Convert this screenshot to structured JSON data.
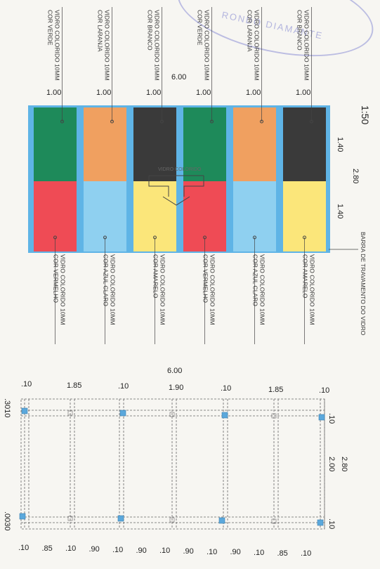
{
  "scale": "1:50",
  "stamp_text": "RONDO DIAMANTE",
  "elevation": {
    "overall_width": "6.00",
    "overall_height": "2.80",
    "panel_height_upper": "1.40",
    "panel_height_lower": "1.40",
    "panel_width_labels": [
      "1.00",
      "1.00",
      "1.00",
      "1.00",
      "1.00",
      "1.00"
    ],
    "upper_panels": [
      {
        "label_line1": "VIDRO COLORIDO 10MM",
        "label_line2": "COR VERDE",
        "color": "#1e8a5a"
      },
      {
        "label_line1": "VIDRO COLORIDO 10MM",
        "label_line2": "COR LARANJA",
        "color": "#f0a060"
      },
      {
        "label_line1": "VIDRO COLORIDO 10MM",
        "label_line2": "COR BRANCO",
        "color": "#3a3a3a"
      },
      {
        "label_line1": "VIDRO COLORIDO 10MM",
        "label_line2": "COR VERDE",
        "color": "#1e8a5a"
      },
      {
        "label_line1": "VIDRO COLORIDO 10MM",
        "label_line2": "COR LARANJA",
        "color": "#f0a060"
      },
      {
        "label_line1": "VIDRO COLORIDO 10MM",
        "label_line2": "COR BRANCO",
        "color": "#3a3a3a"
      }
    ],
    "lower_panels": [
      {
        "label_line1": "VIDRO COLORIDO 10MM",
        "label_line2": "COR VERMELHO",
        "color": "#ef4b55"
      },
      {
        "label_line1": "VIDRO COLORIDO 10MM",
        "label_line2": "COR AZUL CLARO",
        "color": "#8fd0f0"
      },
      {
        "label_line1": "VIDRO COLORIDO 10MM",
        "label_line2": "COR AMARELO",
        "color": "#fbe67a"
      },
      {
        "label_line1": "VIDRO COLORIDO 10MM",
        "label_line2": "COR VERMELHO",
        "color": "#ef4b55"
      },
      {
        "label_line1": "VIDRO COLORIDO 10MM",
        "label_line2": "COR AZUL CLARO",
        "color": "#8fd0f0"
      },
      {
        "label_line1": "VIDRO COLORIDO 10MM",
        "label_line2": "COR AMARELO",
        "color": "#fbe67a"
      }
    ],
    "frame_color": "#5fb4e6",
    "arrow_note": "VIDRO COLORIDO",
    "bar_label": "BARRA DE TRAVAMENTO DO VIDRO"
  },
  "plan": {
    "overall_width": "6.00",
    "top_dims": [
      ".10",
      "1.85",
      ".10",
      "1.90",
      ".10",
      "1.85",
      ".10"
    ],
    "bottom_dims": [
      ".10",
      ".85",
      ".10",
      ".90",
      ".10",
      ".90",
      ".10",
      ".90",
      ".10",
      ".90",
      ".10",
      ".85",
      ".10"
    ],
    "overall_height": "2.80",
    "inner_height": "2.00",
    "right_dim_top": ".10",
    "right_dim_bottom": ".10",
    "left_dim_top": ".3010",
    "left_dim_bottom": ".0030",
    "node_color": "#5ba8dc"
  }
}
